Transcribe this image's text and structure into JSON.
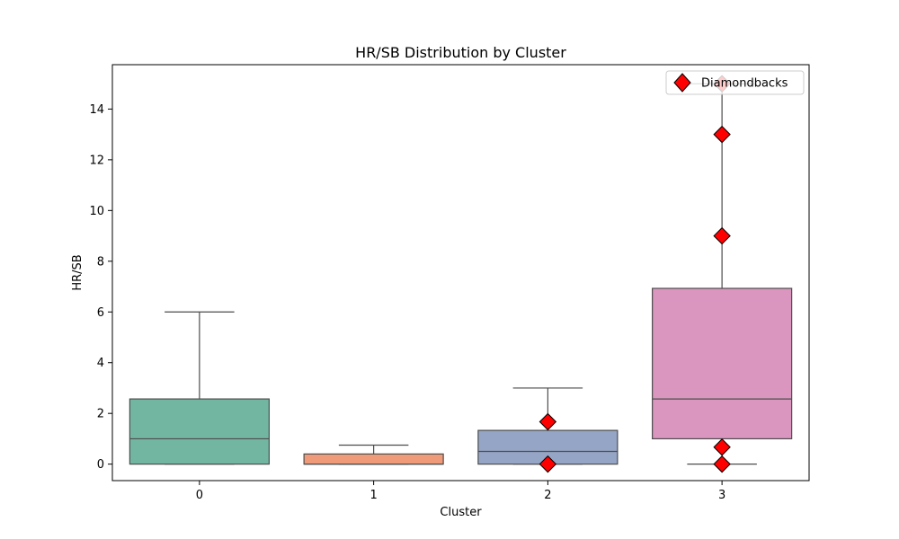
{
  "chart_data": {
    "type": "box",
    "title": "HR/SB Distribution by Cluster",
    "xlabel": "Cluster",
    "ylabel": "HR/SB",
    "categories": [
      "0",
      "1",
      "2",
      "3"
    ],
    "ylim": [
      -0.65,
      15.75
    ],
    "yticks": [
      0,
      2,
      4,
      6,
      8,
      10,
      12,
      14
    ],
    "boxes": [
      {
        "category": "0",
        "whislo": 0,
        "q1": 0,
        "median": 1,
        "q3": 2.57,
        "whishi": 6,
        "color": "#72b6a1"
      },
      {
        "category": "1",
        "whislo": 0,
        "q1": 0,
        "median": 0,
        "q3": 0.4,
        "whishi": 0.75,
        "color": "#ef9a78"
      },
      {
        "category": "2",
        "whislo": 0,
        "q1": 0,
        "median": 0.5,
        "q3": 1.33,
        "whishi": 3,
        "color": "#95a5c6"
      },
      {
        "category": "3",
        "whislo": 0,
        "q1": 1.0,
        "median": 2.57,
        "q3": 6.93,
        "whishi": 15,
        "color": "#db96c0"
      }
    ],
    "series": [
      {
        "name": "Diamondbacks",
        "marker": "diamond",
        "color": "#ff0000",
        "points": [
          {
            "x": "2",
            "y": 1.67
          },
          {
            "x": "2",
            "y": 0
          },
          {
            "x": "3",
            "y": 15
          },
          {
            "x": "3",
            "y": 13
          },
          {
            "x": "3",
            "y": 9
          },
          {
            "x": "3",
            "y": 0.67
          },
          {
            "x": "3",
            "y": 0
          }
        ]
      }
    ],
    "legend_position": "top-right",
    "grid": false
  }
}
